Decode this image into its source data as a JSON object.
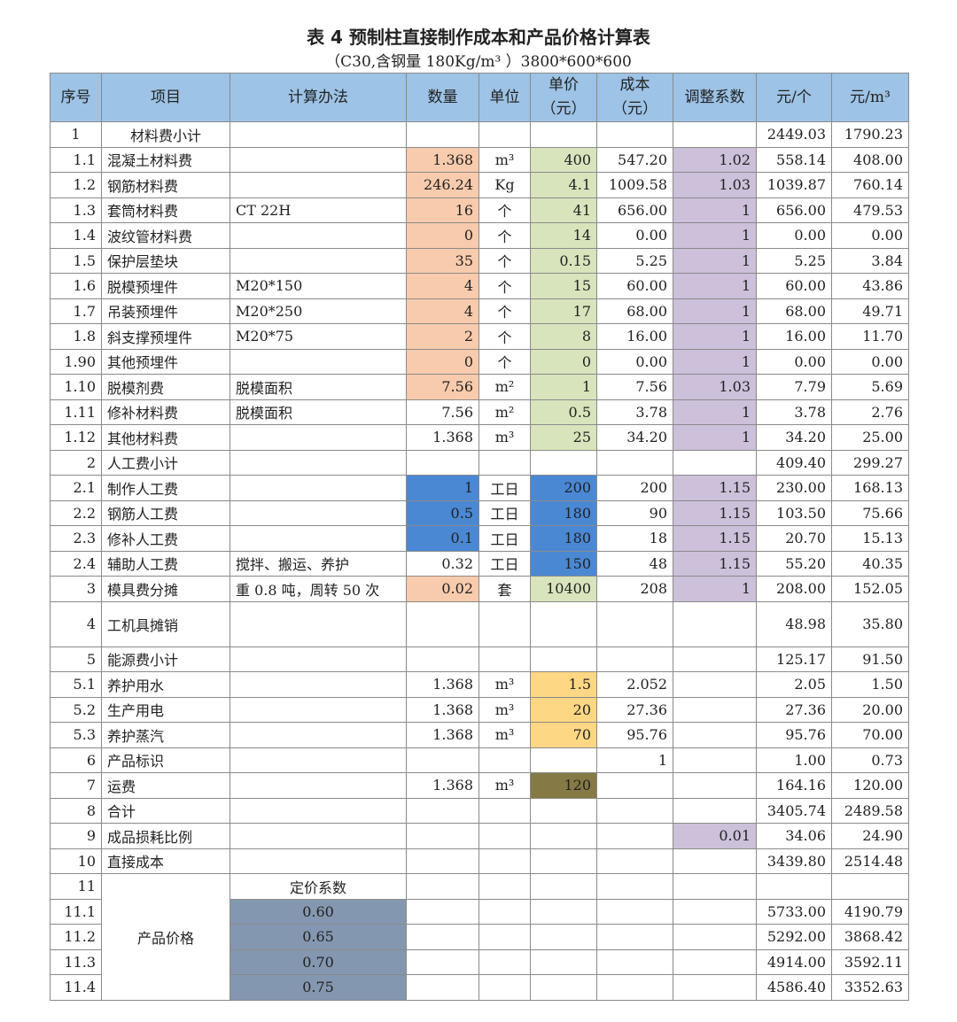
{
  "title": "表 4 预制柱直接制作成本和产品价格计算表",
  "subtitle": "（C30,含钢量 180Kg/m³ ）3800*600*600",
  "colors": {
    "header": "#9dc3e6",
    "orange": "#f8cbad",
    "green": "#d8e4bc",
    "purple": "#ccc0da",
    "blue": "#4a88d4",
    "yellow": "#fdd783",
    "olive": "#857a45",
    "slate": "#8497b0"
  },
  "headers": [
    "序号",
    "项目",
    "计算办法",
    "数量",
    "单位",
    "单价（元）",
    "成本（元）",
    "调整系数",
    "元/个",
    "元/m³"
  ],
  "rows": [
    {
      "no": "1",
      "item": "材料费小计",
      "method": "",
      "qty": "",
      "unit": "",
      "price": "",
      "cost": "",
      "adj": "",
      "pp": "2449.03",
      "pm": "1790.23",
      "center_item": true
    },
    {
      "no": "1.1",
      "item": "混凝土材料费",
      "method": "",
      "qty": "1.368",
      "unit": "m³",
      "price": "400",
      "cost": "547.20",
      "adj": "1.02",
      "pp": "558.14",
      "pm": "408.00",
      "fill": {
        "qty": "orange",
        "price": "green",
        "adj": "purple"
      }
    },
    {
      "no": "1.2",
      "item": "钢筋材料费",
      "method": "",
      "qty": "246.24",
      "unit": "Kg",
      "price": "4.1",
      "cost": "1009.58",
      "adj": "1.03",
      "pp": "1039.87",
      "pm": "760.14",
      "fill": {
        "qty": "orange",
        "price": "green",
        "adj": "purple"
      }
    },
    {
      "no": "1.3",
      "item": "套筒材料费",
      "method": "CT 22H",
      "qty": "16",
      "unit": "个",
      "price": "41",
      "cost": "656.00",
      "adj": "1",
      "pp": "656.00",
      "pm": "479.53",
      "fill": {
        "qty": "orange",
        "price": "green",
        "adj": "purple"
      }
    },
    {
      "no": "1.4",
      "item": "波纹管材料费",
      "method": "",
      "qty": "0",
      "unit": "个",
      "price": "14",
      "cost": "0.00",
      "adj": "1",
      "pp": "0.00",
      "pm": "0.00",
      "fill": {
        "qty": "orange",
        "price": "green",
        "adj": "purple"
      }
    },
    {
      "no": "1.5",
      "item": "保护层垫块",
      "method": "",
      "qty": "35",
      "unit": "个",
      "price": "0.15",
      "cost": "5.25",
      "adj": "1",
      "pp": "5.25",
      "pm": "3.84",
      "fill": {
        "qty": "orange",
        "price": "green",
        "adj": "purple"
      }
    },
    {
      "no": "1.6",
      "item": "脱模预埋件",
      "method": "M20*150",
      "qty": "4",
      "unit": "个",
      "price": "15",
      "cost": "60.00",
      "adj": "1",
      "pp": "60.00",
      "pm": "43.86",
      "fill": {
        "qty": "orange",
        "price": "green",
        "adj": "purple"
      }
    },
    {
      "no": "1.7",
      "item": "吊装预埋件",
      "method": "M20*250",
      "qty": "4",
      "unit": "个",
      "price": "17",
      "cost": "68.00",
      "adj": "1",
      "pp": "68.00",
      "pm": "49.71",
      "fill": {
        "qty": "orange",
        "price": "green",
        "adj": "purple"
      }
    },
    {
      "no": "1.8",
      "item": "斜支撑预埋件",
      "method": "M20*75",
      "qty": "2",
      "unit": "个",
      "price": "8",
      "cost": "16.00",
      "adj": "1",
      "pp": "16.00",
      "pm": "11.70",
      "fill": {
        "qty": "orange",
        "price": "green",
        "adj": "purple"
      }
    },
    {
      "no": "1.90",
      "item": "其他预埋件",
      "method": "",
      "qty": "0",
      "unit": "个",
      "price": "0",
      "cost": "0.00",
      "adj": "1",
      "pp": "0.00",
      "pm": "0.00",
      "fill": {
        "qty": "orange",
        "price": "green",
        "adj": "purple"
      }
    },
    {
      "no": "1.10",
      "item": "脱模剂费",
      "method": "脱模面积",
      "qty": "7.56",
      "unit": "m²",
      "price": "1",
      "cost": "7.56",
      "adj": "1.03",
      "pp": "7.79",
      "pm": "5.69",
      "fill": {
        "qty": "orange",
        "price": "green",
        "adj": "purple"
      }
    },
    {
      "no": "1.11",
      "item": "修补材料费",
      "method": "脱模面积",
      "qty": "7.56",
      "unit": "m²",
      "price": "0.5",
      "cost": "3.78",
      "adj": "1",
      "pp": "3.78",
      "pm": "2.76",
      "fill": {
        "price": "green",
        "adj": "purple"
      }
    },
    {
      "no": "1.12",
      "item": "其他材料费",
      "method": "",
      "qty": "1.368",
      "unit": "m³",
      "price": "25",
      "cost": "34.20",
      "adj": "1",
      "pp": "34.20",
      "pm": "25.00",
      "fill": {
        "price": "green",
        "adj": "purple"
      }
    },
    {
      "no": "2",
      "item": "人工费小计",
      "method": "",
      "qty": "",
      "unit": "",
      "price": "",
      "cost": "",
      "adj": "",
      "pp": "409.40",
      "pm": "299.27"
    },
    {
      "no": "2.1",
      "item": "制作人工费",
      "method": "",
      "qty": "1",
      "unit": "工日",
      "price": "200",
      "cost": "200",
      "adj": "1.15",
      "pp": "230.00",
      "pm": "168.13",
      "fill": {
        "qty": "blue",
        "price": "blue",
        "adj": "purple"
      }
    },
    {
      "no": "2.2",
      "item": "钢筋人工费",
      "method": "",
      "qty": "0.5",
      "unit": "工日",
      "price": "180",
      "cost": "90",
      "adj": "1.15",
      "pp": "103.50",
      "pm": "75.66",
      "fill": {
        "qty": "blue",
        "price": "blue",
        "adj": "purple"
      }
    },
    {
      "no": "2.3",
      "item": "修补人工费",
      "method": "",
      "qty": "0.1",
      "unit": "工日",
      "price": "180",
      "cost": "18",
      "adj": "1.15",
      "pp": "20.70",
      "pm": "15.13",
      "fill": {
        "qty": "blue",
        "price": "blue",
        "adj": "purple"
      }
    },
    {
      "no": "2.4",
      "item": "辅助人工费",
      "method": "搅拌、搬运、养护",
      "qty": "0.32",
      "unit": "工日",
      "price": "150",
      "cost": "48",
      "adj": "1.15",
      "pp": "55.20",
      "pm": "40.35",
      "fill": {
        "price": "blue",
        "adj": "purple"
      }
    },
    {
      "no": "3",
      "item": "模具费分摊",
      "method": "重 0.8 吨，周转 50 次",
      "qty": "0.02",
      "unit": "套",
      "price": "10400",
      "cost": "208",
      "adj": "1",
      "pp": "208.00",
      "pm": "152.05",
      "fill": {
        "qty": "orange",
        "price": "green",
        "adj": "purple"
      }
    },
    {
      "no": "4",
      "item": "工机具摊销",
      "method": "",
      "qty": "",
      "unit": "",
      "price": "",
      "cost": "",
      "adj": "",
      "pp": "48.98",
      "pm": "35.80",
      "tall": true
    },
    {
      "no": "5",
      "item": "能源费小计",
      "method": "",
      "qty": "",
      "unit": "",
      "price": "",
      "cost": "",
      "adj": "",
      "pp": "125.17",
      "pm": "91.50"
    },
    {
      "no": "5.1",
      "item": "养护用水",
      "method": "",
      "qty": "1.368",
      "unit": "m³",
      "price": "1.5",
      "cost": "2.052",
      "adj": "",
      "pp": "2.05",
      "pm": "1.50",
      "fill": {
        "price": "yellow"
      }
    },
    {
      "no": "5.2",
      "item": "生产用电",
      "method": "",
      "qty": "1.368",
      "unit": "m³",
      "price": "20",
      "cost": "27.36",
      "adj": "",
      "pp": "27.36",
      "pm": "20.00",
      "fill": {
        "price": "yellow"
      }
    },
    {
      "no": "5.3",
      "item": "养护蒸汽",
      "method": "",
      "qty": "1.368",
      "unit": "m³",
      "price": "70",
      "cost": "95.76",
      "adj": "",
      "pp": "95.76",
      "pm": "70.00",
      "fill": {
        "price": "yellow"
      }
    },
    {
      "no": "6",
      "item": "产品标识",
      "method": "",
      "qty": "",
      "unit": "",
      "price": "",
      "cost": "1",
      "adj": "",
      "pp": "1.00",
      "pm": "0.73"
    },
    {
      "no": "7",
      "item": "运费",
      "method": "",
      "qty": "1.368",
      "unit": "m³",
      "price": "120",
      "cost": "",
      "adj": "",
      "pp": "164.16",
      "pm": "120.00",
      "fill": {
        "price": "olive"
      }
    },
    {
      "no": "8",
      "item": "合计",
      "method": "",
      "qty": "",
      "unit": "",
      "price": "",
      "cost": "",
      "adj": "",
      "pp": "3405.74",
      "pm": "2489.58"
    },
    {
      "no": "9",
      "item": "成品损耗比例",
      "method": "",
      "qty": "",
      "unit": "",
      "price": "",
      "cost": "",
      "adj": "0.01",
      "pp": "34.06",
      "pm": "24.90",
      "fill": {
        "adj": "purple"
      }
    },
    {
      "no": "10",
      "item": "直接成本",
      "method": "",
      "qty": "",
      "unit": "",
      "price": "",
      "cost": "",
      "adj": "",
      "pp": "3439.80",
      "pm": "2514.48"
    }
  ],
  "pricing": {
    "no": "11",
    "item": "产品价格",
    "coef_label": "定价系数",
    "rows": [
      {
        "no": "11.1",
        "coef": "0.60",
        "pp": "5733.00",
        "pm": "4190.79"
      },
      {
        "no": "11.2",
        "coef": "0.65",
        "pp": "5292.00",
        "pm": "3868.42"
      },
      {
        "no": "11.3",
        "coef": "0.70",
        "pp": "4914.00",
        "pm": "3592.11"
      },
      {
        "no": "11.4",
        "coef": "0.75",
        "pp": "4586.40",
        "pm": "3352.63"
      }
    ]
  }
}
